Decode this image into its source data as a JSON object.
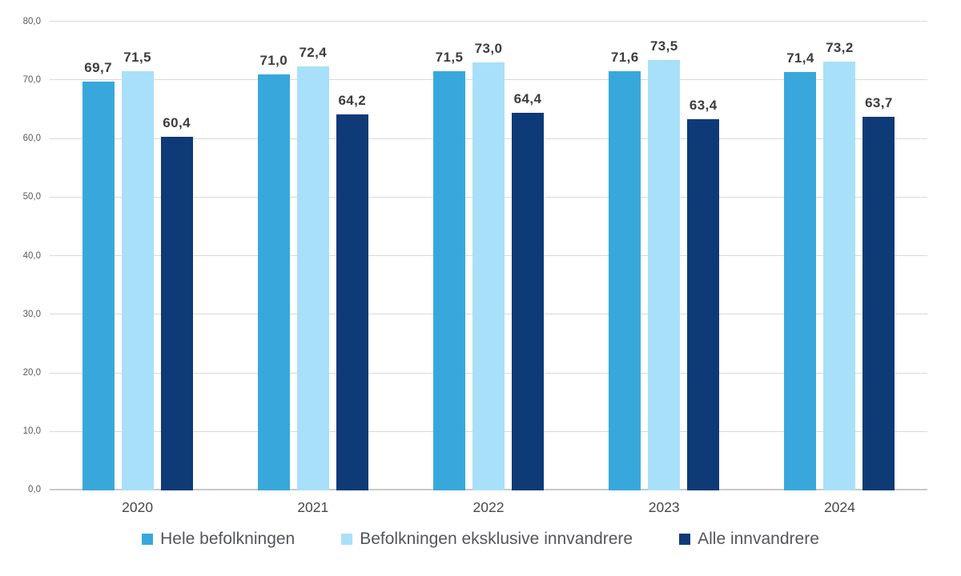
{
  "chart_data": {
    "type": "bar",
    "title": "",
    "xlabel": "",
    "ylabel": "",
    "categories": [
      "2020",
      "2021",
      "2022",
      "2023",
      "2024"
    ],
    "series": [
      {
        "name": "Hele befolkningen",
        "color": "#38a8dc",
        "values": [
          69.7,
          71.0,
          71.5,
          71.6,
          71.4
        ],
        "labels": [
          "69,7",
          "71,0",
          "71,5",
          "71,6",
          "71,4"
        ]
      },
      {
        "name": "Befolkningen eksklusive innvandrere",
        "color": "#a8e0f9",
        "values": [
          71.5,
          72.4,
          73.0,
          73.5,
          73.2
        ],
        "labels": [
          "71,5",
          "72,4",
          "73,0",
          "73,5",
          "73,2"
        ]
      },
      {
        "name": "Alle innvandrere",
        "color": "#0e3a78",
        "values": [
          60.4,
          64.2,
          64.4,
          63.4,
          63.7
        ],
        "labels": [
          "60,4",
          "64,2",
          "64,4",
          "63,4",
          "63,7"
        ]
      }
    ],
    "ylim": [
      0,
      80
    ],
    "y_ticks": [
      "0,0",
      "10,0",
      "20,0",
      "30,0",
      "40,0",
      "50,0",
      "60,0",
      "70,0",
      "80,0"
    ],
    "grid": true,
    "legend_position": "bottom",
    "colors": {
      "gridline": "#d9d9d9",
      "baseline": "#c8c8c8",
      "value_label_text": "#3d3d3d",
      "axis_tick_text": "#595959",
      "category_text": "#474747",
      "legend_text": "#54565a"
    }
  }
}
